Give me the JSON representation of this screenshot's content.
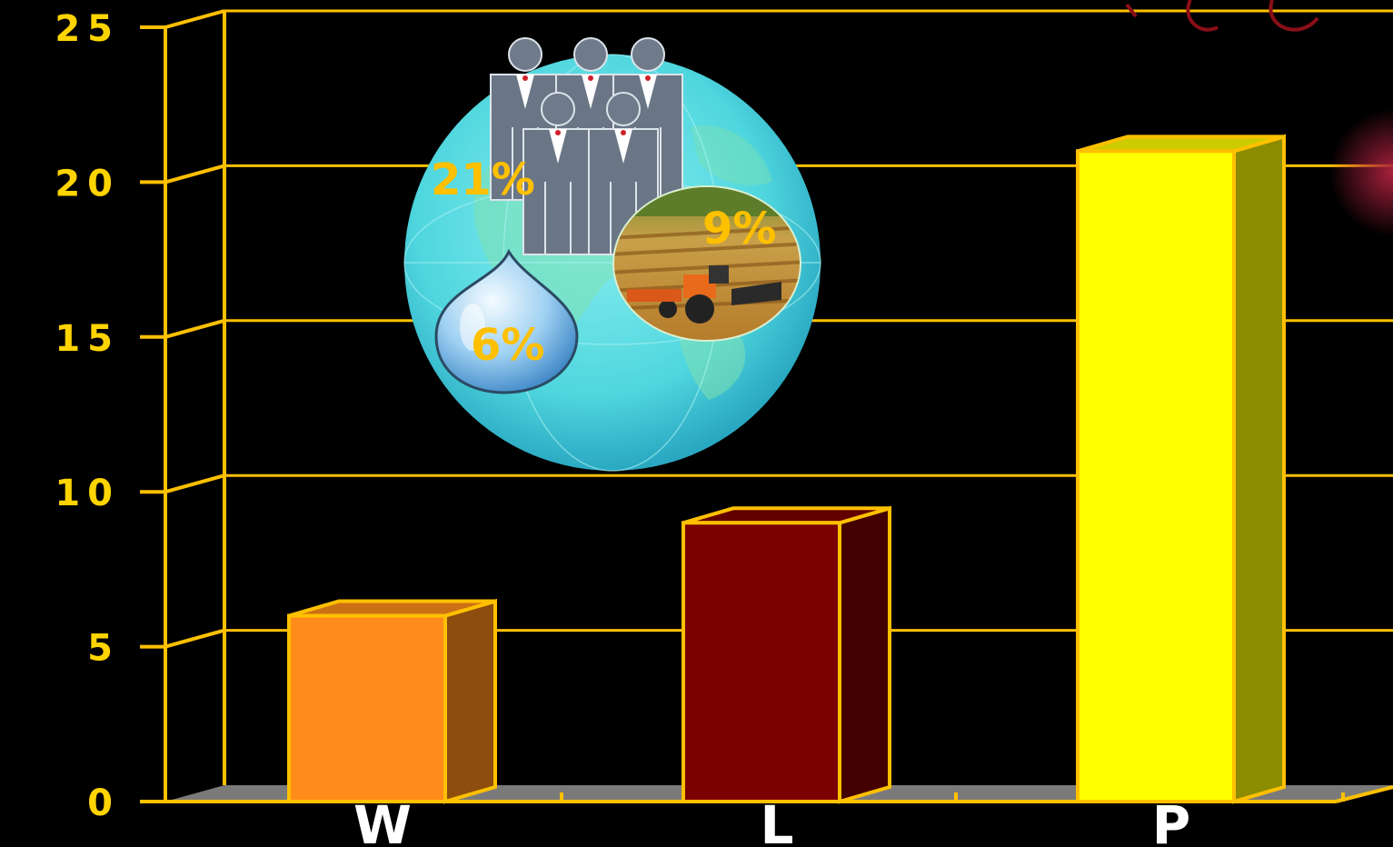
{
  "chart_data": {
    "type": "bar",
    "categories": [
      "W",
      "L",
      "P"
    ],
    "values": [
      6,
      9,
      21
    ],
    "colors": [
      "#FF8C1A",
      "#7B0000",
      "#FFFF00"
    ],
    "ylim": [
      0,
      25
    ],
    "yticks": [
      "0",
      "5",
      "10",
      "15",
      "20",
      "25"
    ],
    "grid": true,
    "style": "3d-bars",
    "accent": "#FFC000",
    "background": "#000000"
  },
  "annotations": {
    "people_percent": "21%",
    "land_percent": "9%",
    "water_percent": "6%"
  },
  "icons": [
    "globe-icon",
    "people-icon",
    "water-drop-icon",
    "tractor-field-icon"
  ]
}
